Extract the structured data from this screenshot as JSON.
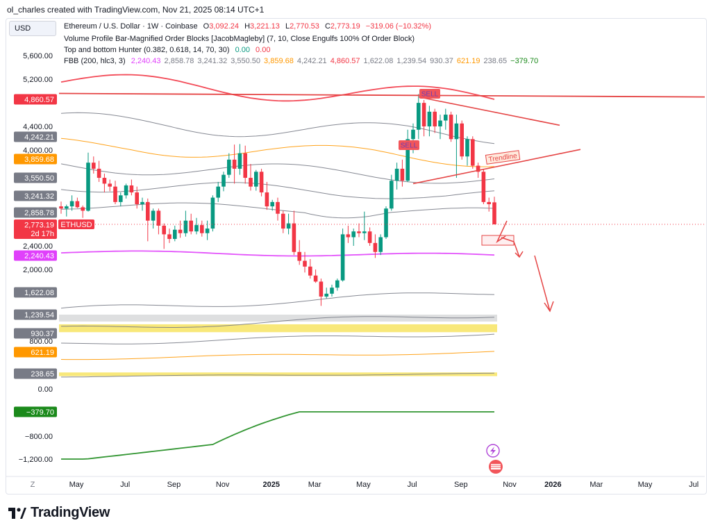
{
  "caption": "ol_charles created with TradingView.com, Nov 21, 2025 08:14 UTC+1",
  "currency": "USD",
  "legend": {
    "symbol": "Ethereum / U.S. Dollar · 1W · Coinbase",
    "o_label": "O",
    "o": "3,092.24",
    "h_label": "H",
    "h": "3,221.13",
    "l_label": "L",
    "l": "2,770.53",
    "c_label": "C",
    "c": "2,773.19",
    "change": "−319.06 (−10.32%)",
    "indicator1": "Volume Profile Bar-Magnified Order Blocks [JacobMagleby] (7, 10, Close Engulfs 100% Of Order Block)",
    "indicator2": "Top and bottom Hunter (0.382, 0.618, 14, 70, 30)",
    "indicator2_v1": "0.00",
    "indicator2_v2": "0.00",
    "indicator3": "FBB (200, hlc3, 3)",
    "fbb_values": [
      {
        "v": "2,240.43",
        "color": "#e040fb"
      },
      {
        "v": "2,858.78",
        "color": "#787b86"
      },
      {
        "v": "3,241.32",
        "color": "#787b86"
      },
      {
        "v": "3,550.50",
        "color": "#787b86"
      },
      {
        "v": "3,859.68",
        "color": "#ff9800"
      },
      {
        "v": "4,242.21",
        "color": "#787b86"
      },
      {
        "v": "4,860.57",
        "color": "#f23645"
      },
      {
        "v": "1,622.08",
        "color": "#787b86"
      },
      {
        "v": "1,239.54",
        "color": "#787b86"
      },
      {
        "v": "930.37",
        "color": "#787b86"
      },
      {
        "v": "621.19",
        "color": "#ff9800"
      },
      {
        "v": "238.65",
        "color": "#787b86"
      },
      {
        "v": "−379.70",
        "color": "#1b8a1b"
      }
    ]
  },
  "chart_data": {
    "type": "candlestick",
    "title": "Ethereum / U.S. Dollar · 1W · Coinbase",
    "y_axis_ticks": [
      5600,
      5200,
      4400,
      4000,
      2400,
      2000,
      800,
      0,
      -800,
      -1200
    ],
    "y_axis_tick_labels": [
      "5,600.00",
      "5,200.00",
      "4,400.00",
      "4,000.00",
      "2,400.00",
      "2,000.00",
      "800.00",
      "0.00",
      "−800.00",
      "−1,200.00"
    ],
    "x_axis_labels": [
      "May",
      "Jul",
      "Sep",
      "Nov",
      "2025",
      "Mar",
      "May",
      "Jul",
      "Sep",
      "Nov",
      "2026",
      "Mar",
      "May",
      "Jul"
    ],
    "x_axis_label_weeks": [
      0,
      9,
      18,
      27,
      36,
      44,
      53,
      62,
      71,
      80,
      88,
      96,
      105,
      114
    ],
    "first_bar_week": 0,
    "candles": [
      [
        3000,
        3110,
        2850,
        2950
      ],
      [
        2950,
        3040,
        2830,
        3000
      ],
      [
        3000,
        3250,
        2900,
        3120
      ],
      [
        3120,
        3200,
        2960,
        2980
      ],
      [
        2980,
        3020,
        2820,
        2900
      ],
      [
        2900,
        3960,
        2880,
        3800
      ],
      [
        3800,
        3900,
        3620,
        3700
      ],
      [
        3700,
        3830,
        3480,
        3550
      ],
      [
        3550,
        3620,
        3300,
        3450
      ],
      [
        3450,
        3520,
        3320,
        3400
      ],
      [
        3400,
        3500,
        3050,
        3100
      ],
      [
        3100,
        3300,
        3000,
        3250
      ],
      [
        3250,
        3450,
        3180,
        3420
      ],
      [
        3420,
        3520,
        3250,
        3300
      ],
      [
        3300,
        3400,
        2950,
        3050
      ],
      [
        3050,
        3200,
        2900,
        3100
      ],
      [
        3100,
        3180,
        2480,
        2800
      ],
      [
        2800,
        2950,
        2700,
        2900
      ],
      [
        2900,
        2950,
        2600,
        2750
      ],
      [
        2750,
        2780,
        2350,
        2600
      ],
      [
        2600,
        2700,
        2450,
        2520
      ],
      [
        2520,
        2750,
        2480,
        2680
      ],
      [
        2680,
        2800,
        2540,
        2620
      ],
      [
        2620,
        2900,
        2560,
        2800
      ],
      [
        2800,
        2850,
        2600,
        2650
      ],
      [
        2650,
        2820,
        2600,
        2760
      ],
      [
        2760,
        2800,
        2560,
        2620
      ],
      [
        2620,
        2800,
        2500,
        2700
      ],
      [
        2700,
        3250,
        2650,
        3200
      ],
      [
        3200,
        3480,
        3100,
        3400
      ],
      [
        3400,
        3650,
        3320,
        3600
      ],
      [
        3600,
        3950,
        3550,
        3850
      ],
      [
        3850,
        4100,
        3450,
        3700
      ],
      [
        3700,
        4110,
        3600,
        3950
      ],
      [
        3950,
        4080,
        3450,
        3550
      ],
      [
        3550,
        3780,
        3330,
        3400
      ],
      [
        3400,
        3680,
        3330,
        3650
      ],
      [
        3650,
        3700,
        3230,
        3300
      ],
      [
        3300,
        3480,
        2920,
        3000
      ],
      [
        3000,
        3150,
        2900,
        3100
      ],
      [
        3100,
        3200,
        2800,
        2850
      ],
      [
        2850,
        2900,
        2620,
        2700
      ],
      [
        2700,
        2850,
        2600,
        2780
      ],
      [
        2780,
        2900,
        2250,
        2300
      ],
      [
        2300,
        2500,
        2080,
        2150
      ],
      [
        2150,
        2300,
        1950,
        2050
      ],
      [
        2050,
        2180,
        1850,
        1900
      ],
      [
        1900,
        2000,
        1780,
        1800
      ],
      [
        1800,
        1850,
        1390,
        1550
      ],
      [
        1550,
        1700,
        1520,
        1600
      ],
      [
        1600,
        1750,
        1550,
        1700
      ],
      [
        1700,
        1850,
        1650,
        1820
      ],
      [
        1820,
        2700,
        1800,
        2600
      ],
      [
        2600,
        2750,
        2450,
        2550
      ],
      [
        2550,
        2700,
        2400,
        2650
      ],
      [
        2650,
        2780,
        2550,
        2620
      ],
      [
        2620,
        2880,
        2500,
        2650
      ],
      [
        2650,
        2720,
        2400,
        2450
      ],
      [
        2450,
        2600,
        2200,
        2300
      ],
      [
        2300,
        2600,
        2250,
        2550
      ],
      [
        2550,
        3000,
        2520,
        2950
      ],
      [
        2950,
        3600,
        2900,
        3500
      ],
      [
        3500,
        3800,
        3350,
        3700
      ],
      [
        3700,
        3850,
        3400,
        3500
      ],
      [
        3500,
        4350,
        3480,
        4200
      ],
      [
        4200,
        4450,
        3950,
        4350
      ],
      [
        4350,
        4950,
        4200,
        4800
      ],
      [
        4800,
        4850,
        4250,
        4400
      ],
      [
        4400,
        4750,
        4250,
        4650
      ],
      [
        4650,
        4700,
        4300,
        4400
      ],
      [
        4400,
        4600,
        4200,
        4500
      ],
      [
        4500,
        4700,
        4350,
        4600
      ],
      [
        4600,
        4650,
        4150,
        4200
      ],
      [
        4200,
        4600,
        3550,
        4450
      ],
      [
        4450,
        4500,
        3850,
        3900
      ],
      [
        3900,
        4250,
        3750,
        4200
      ],
      [
        4200,
        4250,
        3700,
        3750
      ],
      [
        3750,
        3800,
        3550,
        3650
      ],
      [
        3650,
        3700,
        3050,
        3100
      ],
      [
        3100,
        3200,
        2880,
        3050
      ],
      [
        3092.24,
        3221.13,
        2770.53,
        2773.19
      ]
    ],
    "series": [
      {
        "name": "FBB upper 4,860.57",
        "color": "#f23645",
        "last": 4860.57
      },
      {
        "name": "FBB 4,242.21",
        "color": "#787b86",
        "last": 4242.21
      },
      {
        "name": "FBB 3,859.68",
        "color": "#ff9800",
        "last": 3859.68
      },
      {
        "name": "FBB 3,550.50",
        "color": "#787b86",
        "last": 3550.5
      },
      {
        "name": "FBB 3,241.32",
        "color": "#787b86",
        "last": 3241.32
      },
      {
        "name": "FBB 2,858.78",
        "color": "#787b86",
        "last": 2858.78
      },
      {
        "name": "FBB basis 2,240.43",
        "color": "#e040fb",
        "last": 2240.43
      },
      {
        "name": "FBB 1,622.08",
        "color": "#787b86",
        "last": 1622.08
      },
      {
        "name": "FBB 1,239.54",
        "color": "#787b86",
        "last": 1239.54
      },
      {
        "name": "FBB 930.37",
        "color": "#787b86",
        "last": 930.37
      },
      {
        "name": "FBB 621.19",
        "color": "#ff9800",
        "last": 621.19
      },
      {
        "name": "FBB 238.65",
        "color": "#787b86",
        "last": 238.65
      },
      {
        "name": "FBB lower −379.70",
        "color": "#1b8a1b",
        "last": -379.7
      }
    ],
    "price_labels": [
      {
        "text": "4,860.57",
        "value": 4860.57,
        "bg": "#f23645",
        "fg": "#ffffff"
      },
      {
        "text": "4,242.21",
        "value": 4242.21,
        "bg": "#787b86",
        "fg": "#ffffff"
      },
      {
        "text": "3,859.68",
        "value": 3859.68,
        "bg": "#ff9800",
        "fg": "#ffffff"
      },
      {
        "text": "3,550.50",
        "value": 3550.5,
        "bg": "#787b86",
        "fg": "#ffffff"
      },
      {
        "text": "3,241.32",
        "value": 3241.32,
        "bg": "#787b86",
        "fg": "#ffffff"
      },
      {
        "text": "2,858.78",
        "value": 2858.78,
        "bg": "#787b86",
        "fg": "#ffffff"
      },
      {
        "text": "2,773.19",
        "value": 2773.19,
        "bg": "#f23645",
        "fg": "#ffffff",
        "sub": "2d 17h",
        "tag": "ETHUSD"
      },
      {
        "text": "2,240.43",
        "value": 2240.43,
        "bg": "#e040fb",
        "fg": "#ffffff"
      },
      {
        "text": "1,622.08",
        "value": 1622.08,
        "bg": "#787b86",
        "fg": "#ffffff"
      },
      {
        "text": "1,239.54",
        "value": 1239.54,
        "bg": "#787b86",
        "fg": "#ffffff"
      },
      {
        "text": "930.37",
        "value": 930.37,
        "bg": "#787b86",
        "fg": "#ffffff"
      },
      {
        "text": "621.19",
        "value": 621.19,
        "bg": "#ff9800",
        "fg": "#ffffff"
      },
      {
        "text": "238.65",
        "value": 238.65,
        "bg": "#787b86",
        "fg": "#ffffff"
      },
      {
        "text": "−379.70",
        "value": -379.7,
        "bg": "#1b8a1b",
        "fg": "#ffffff"
      }
    ],
    "annotations": {
      "sell_labels": [
        "SELL",
        "SELL"
      ],
      "trendline_label": "Trendline",
      "order_block_zones": [
        [
          950,
          1080
        ],
        [
          200,
          260
        ]
      ]
    },
    "x_axis_left_icon": "Z",
    "xlabel": "",
    "ylabel": "USD"
  },
  "brand": {
    "name": "TradingView",
    "logo": "tradingview-logo"
  }
}
